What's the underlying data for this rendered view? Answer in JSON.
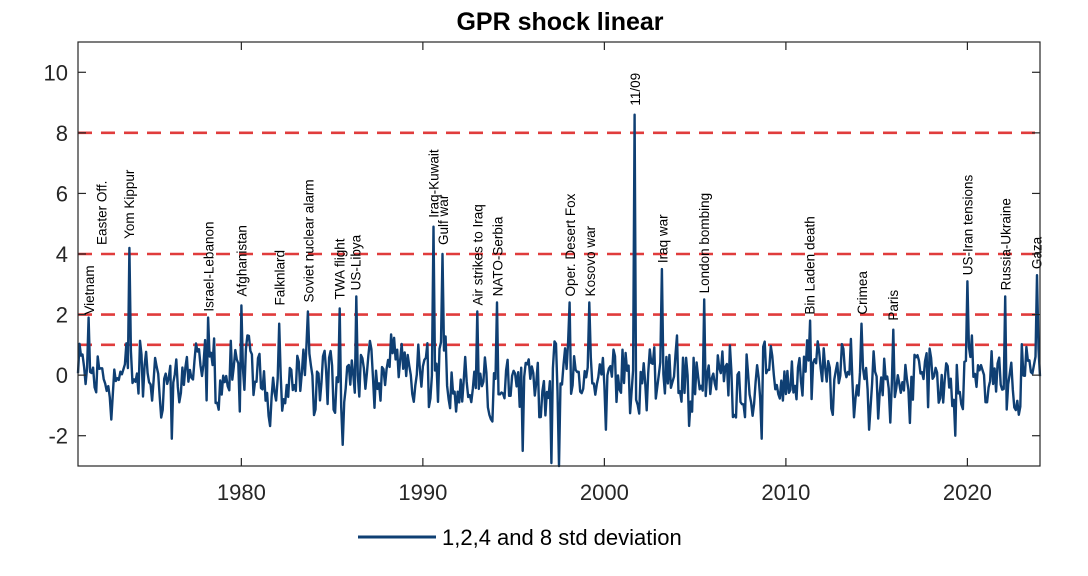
{
  "chart_data": {
    "type": "line",
    "title": "GPR shock linear",
    "xlabel": "",
    "ylabel": "",
    "xlim": [
      1971,
      2024
    ],
    "ylim": [
      -3,
      11
    ],
    "x_ticks": [
      1980,
      1990,
      2000,
      2010,
      2020
    ],
    "x_tick_labels": [
      "1980",
      "1990",
      "2000",
      "2010",
      "2020"
    ],
    "y_ticks": [
      -2,
      0,
      2,
      4,
      6,
      8,
      10
    ],
    "y_tick_labels": [
      "-2",
      "0",
      "2",
      "4",
      "6",
      "8",
      "10"
    ],
    "thresholds": [
      1,
      2,
      4,
      8
    ],
    "threshold_color": "#e03c3c",
    "series_color": "#0f3f73",
    "legend": {
      "label": "1,2,4 and 8 std deviation",
      "placement": "bottom-center"
    },
    "series": [
      {
        "name": "1,2,4 and 8 std deviation",
        "peaks": [
          {
            "x": 1971.6,
            "y": 1.9
          },
          {
            "x": 1973.8,
            "y": 4.2
          },
          {
            "x": 1978.2,
            "y": 1.9
          },
          {
            "x": 1980.0,
            "y": 2.3
          },
          {
            "x": 1982.1,
            "y": 1.7
          },
          {
            "x": 1983.7,
            "y": 2.1
          },
          {
            "x": 1985.4,
            "y": 2.2
          },
          {
            "x": 1986.3,
            "y": 2.6
          },
          {
            "x": 1990.6,
            "y": 4.9
          },
          {
            "x": 1991.1,
            "y": 4.0
          },
          {
            "x": 1993.0,
            "y": 2.1
          },
          {
            "x": 1994.1,
            "y": 2.4
          },
          {
            "x": 1998.1,
            "y": 2.4
          },
          {
            "x": 1999.2,
            "y": 2.4
          },
          {
            "x": 2001.7,
            "y": 8.6
          },
          {
            "x": 2003.2,
            "y": 3.5
          },
          {
            "x": 2005.5,
            "y": 2.5
          },
          {
            "x": 2011.3,
            "y": 1.8
          },
          {
            "x": 2014.2,
            "y": 1.7
          },
          {
            "x": 2015.9,
            "y": 1.5
          },
          {
            "x": 2020.0,
            "y": 3.1
          },
          {
            "x": 2022.1,
            "y": 2.6
          },
          {
            "x": 2023.8,
            "y": 3.3
          }
        ],
        "troughs": [
          {
            "x": 1976.2,
            "y": -2.1
          },
          {
            "x": 1985.6,
            "y": -2.3
          },
          {
            "x": 1995.5,
            "y": -2.5
          },
          {
            "x": 1997.1,
            "y": -2.9
          },
          {
            "x": 1997.5,
            "y": -3.0
          },
          {
            "x": 2000.1,
            "y": -1.8
          },
          {
            "x": 2008.7,
            "y": -2.1
          },
          {
            "x": 2014.6,
            "y": -1.8
          },
          {
            "x": 2019.3,
            "y": -2.0
          }
        ]
      }
    ],
    "annotations": [
      {
        "text": "Vietnam",
        "x": 1971.6,
        "y": 1.9
      },
      {
        "text": "Easter Off.",
        "x": 1972.3,
        "y": 4.2
      },
      {
        "text": "Yom Kippur",
        "x": 1973.8,
        "y": 4.4
      },
      {
        "text": "Israel-Lebanon",
        "x": 1978.2,
        "y": 2.0
      },
      {
        "text": "Afghanistan",
        "x": 1980.0,
        "y": 2.5
      },
      {
        "text": "Falknlard",
        "x": 1982.1,
        "y": 2.2
      },
      {
        "text": "Soviet nuclear alarm",
        "x": 1983.7,
        "y": 2.3
      },
      {
        "text": "TWA flight",
        "x": 1985.4,
        "y": 2.4
      },
      {
        "text": "US-Libya",
        "x": 1986.3,
        "y": 2.7
      },
      {
        "text": "Iraq-Kuwait",
        "x": 1990.6,
        "y": 5.1
      },
      {
        "text": "Gulf war",
        "x": 1991.1,
        "y": 4.2
      },
      {
        "text": "Air strikes to Iraq",
        "x": 1993.0,
        "y": 2.2
      },
      {
        "text": "NATO-Serbia",
        "x": 1994.1,
        "y": 2.5
      },
      {
        "text": "Oper. Desert Fox",
        "x": 1998.1,
        "y": 2.5
      },
      {
        "text": "Kosovo war",
        "x": 1999.2,
        "y": 2.5
      },
      {
        "text": "11/09",
        "x": 2001.7,
        "y": 8.8
      },
      {
        "text": "Iraq war",
        "x": 2003.2,
        "y": 3.6
      },
      {
        "text": "London bombing",
        "x": 2005.5,
        "y": 2.6
      },
      {
        "text": "Bin Laden death",
        "x": 2011.3,
        "y": 1.9
      },
      {
        "text": "Crimea",
        "x": 2014.2,
        "y": 1.9
      },
      {
        "text": "Paris",
        "x": 2015.9,
        "y": 1.7
      },
      {
        "text": "US-Iran tensions",
        "x": 2020.0,
        "y": 3.2
      },
      {
        "text": "Russia-Ukraine",
        "x": 2022.1,
        "y": 2.7
      },
      {
        "text": "Gaza",
        "x": 2023.8,
        "y": 3.4
      }
    ]
  }
}
